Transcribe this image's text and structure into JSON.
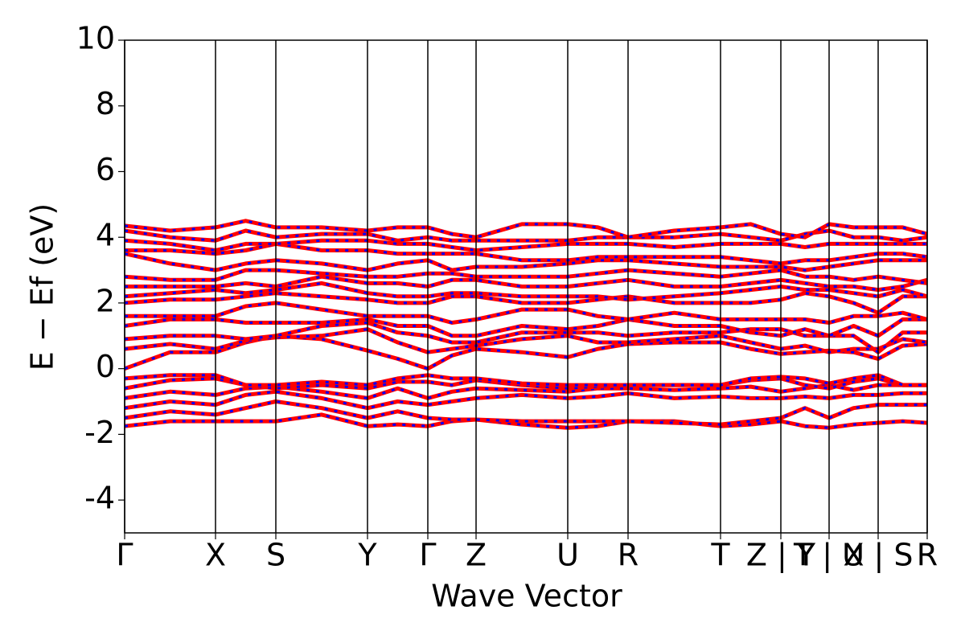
{
  "chart_data": {
    "type": "band",
    "xlabel": "Wave Vector",
    "ylabel": "E − Ef (eV)",
    "xlim": [
      0,
      9.98
    ],
    "ylim": [
      -5,
      10
    ],
    "yticks": [
      -4,
      -2,
      0,
      2,
      4,
      6,
      8,
      10
    ],
    "xticks": [
      {
        "value": 0,
        "label": "Γ"
      },
      {
        "value": 1.13,
        "label": "X"
      },
      {
        "value": 1.88,
        "label": "S"
      },
      {
        "value": 3.02,
        "label": "Y"
      },
      {
        "value": 3.77,
        "label": "Γ"
      },
      {
        "value": 4.37,
        "label": "Z"
      },
      {
        "value": 5.51,
        "label": "U"
      },
      {
        "value": 6.26,
        "label": "R"
      },
      {
        "value": 7.41,
        "label": "T"
      },
      {
        "value": 8.16,
        "label": "Z | Y"
      },
      {
        "value": 8.76,
        "label": "T | U"
      },
      {
        "value": 9.37,
        "label": "X | S"
      },
      {
        "value": 9.98,
        "label": "R"
      }
    ],
    "colors": [
      "#ff0000",
      "#0000ff"
    ],
    "x": [
      0,
      0.565,
      1.13,
      1.505,
      1.88,
      2.45,
      3.02,
      3.395,
      3.77,
      4.07,
      4.37,
      4.94,
      5.51,
      5.885,
      6.26,
      6.835,
      7.41,
      7.785,
      8.16,
      8.46,
      8.76,
      9.065,
      9.37,
      9.675,
      9.98
    ],
    "series": [
      {
        "values": [
          -1.75,
          -1.6,
          -1.6,
          -1.6,
          -1.6,
          -1.4,
          -1.75,
          -1.7,
          -1.75,
          -1.6,
          -1.55,
          -1.7,
          -1.8,
          -1.75,
          -1.6,
          -1.6,
          -1.75,
          -1.7,
          -1.6,
          -1.75,
          -1.8,
          -1.7,
          -1.65,
          -1.6,
          -1.65
        ]
      },
      {
        "values": [
          -1.5,
          -1.3,
          -1.4,
          -1.2,
          -1.0,
          -1.2,
          -1.5,
          -1.3,
          -1.5,
          -1.55,
          -1.55,
          -1.6,
          -1.6,
          -1.6,
          -1.6,
          -1.65,
          -1.7,
          -1.6,
          -1.5,
          -1.2,
          -1.5,
          -1.2,
          -1.1,
          -1.1,
          -1.1
        ]
      },
      {
        "values": [
          -1.2,
          -1.0,
          -1.1,
          -0.8,
          -0.7,
          -0.9,
          -1.2,
          -1.0,
          -1.1,
          -1.0,
          -0.9,
          -0.8,
          -0.9,
          -0.85,
          -0.75,
          -0.9,
          -0.85,
          -0.9,
          -0.9,
          -0.85,
          -0.9,
          -0.8,
          -0.8,
          -0.75,
          -0.75
        ]
      },
      {
        "values": [
          -0.9,
          -0.7,
          -0.8,
          -0.6,
          -0.55,
          -0.7,
          -0.9,
          -0.6,
          -0.9,
          -0.7,
          -0.6,
          -0.65,
          -0.7,
          -0.6,
          -0.6,
          -0.65,
          -0.6,
          -0.55,
          -0.7,
          -0.6,
          -0.5,
          -0.65,
          -0.5,
          -0.5,
          -0.5
        ]
      },
      {
        "values": [
          -0.6,
          -0.35,
          -0.3,
          -0.5,
          -0.6,
          -0.5,
          -0.6,
          -0.4,
          -0.4,
          -0.5,
          -0.35,
          -0.5,
          -0.6,
          -0.55,
          -0.5,
          -0.5,
          -0.5,
          -0.35,
          -0.3,
          -0.5,
          -0.6,
          -0.4,
          -0.3,
          -0.5,
          -0.5
        ]
      },
      {
        "values": [
          -0.3,
          -0.2,
          -0.2,
          -0.5,
          -0.5,
          -0.4,
          -0.5,
          -0.3,
          -0.2,
          -0.3,
          -0.3,
          -0.45,
          -0.5,
          -0.5,
          -0.5,
          -0.5,
          -0.5,
          -0.3,
          -0.25,
          -0.3,
          -0.45,
          -0.3,
          -0.2,
          -0.5,
          -0.5
        ]
      },
      {
        "values": [
          0,
          0.5,
          0.5,
          0.8,
          1.0,
          0.9,
          0.55,
          0.3,
          0,
          0.4,
          0.6,
          0.5,
          0.35,
          0.6,
          0.75,
          0.8,
          0.8,
          0.6,
          0.45,
          0.5,
          0.55,
          0.5,
          0.3,
          0.7,
          0.75
        ]
      },
      {
        "values": [
          0.6,
          0.75,
          0.6,
          0.85,
          0.95,
          1.0,
          1.2,
          0.8,
          0.5,
          0.6,
          0.7,
          0.9,
          1.0,
          0.8,
          0.8,
          0.9,
          1.0,
          0.8,
          0.6,
          0.7,
          0.5,
          0.6,
          0.6,
          0.9,
          0.8
        ]
      },
      {
        "values": [
          0.9,
          1.0,
          1.0,
          0.9,
          1.0,
          1.3,
          1.4,
          1.1,
          1.0,
          0.8,
          0.8,
          1.1,
          1.1,
          1.1,
          1.0,
          1.1,
          1.1,
          1.2,
          1.2,
          1.0,
          1.0,
          1.0,
          0.5,
          1.1,
          1.1
        ]
      },
      {
        "values": [
          1.3,
          1.5,
          1.5,
          1.4,
          1.4,
          1.4,
          1.5,
          1.3,
          1.3,
          1.0,
          1.0,
          1.3,
          1.2,
          1.3,
          1.5,
          1.3,
          1.3,
          1.1,
          1.0,
          1.2,
          1.0,
          1.3,
          1.0,
          1.5,
          1.5
        ]
      },
      {
        "values": [
          1.6,
          1.6,
          1.6,
          1.9,
          2.0,
          1.8,
          1.6,
          1.6,
          1.6,
          1.4,
          1.5,
          1.8,
          1.8,
          1.6,
          1.5,
          1.7,
          1.5,
          1.5,
          1.5,
          1.5,
          1.4,
          1.6,
          1.6,
          1.7,
          1.5
        ]
      },
      {
        "values": [
          2.0,
          2.1,
          2.1,
          2.2,
          2.3,
          2.2,
          2.1,
          2.0,
          2.0,
          2.2,
          2.2,
          2.0,
          2.0,
          2.1,
          2.2,
          2.0,
          2.0,
          2.0,
          2.1,
          2.3,
          2.2,
          2.0,
          1.7,
          2.2,
          2.2
        ]
      },
      {
        "values": [
          2.2,
          2.3,
          2.4,
          2.3,
          2.4,
          2.6,
          2.3,
          2.2,
          2.2,
          2.3,
          2.3,
          2.2,
          2.2,
          2.2,
          2.1,
          2.2,
          2.3,
          2.4,
          2.5,
          2.4,
          2.4,
          2.3,
          2.2,
          2.4,
          2.2
        ]
      },
      {
        "values": [
          2.5,
          2.5,
          2.5,
          2.6,
          2.5,
          2.8,
          2.6,
          2.6,
          2.5,
          2.7,
          2.7,
          2.5,
          2.5,
          2.6,
          2.7,
          2.5,
          2.5,
          2.6,
          2.7,
          2.6,
          2.5,
          2.5,
          2.4,
          2.5,
          2.7
        ]
      },
      {
        "values": [
          2.8,
          2.7,
          2.7,
          3.0,
          3.0,
          2.9,
          2.8,
          2.8,
          2.9,
          2.9,
          2.8,
          2.8,
          2.8,
          2.9,
          3.0,
          2.9,
          2.8,
          2.9,
          3.0,
          2.8,
          2.8,
          2.7,
          2.8,
          2.7,
          2.6
        ]
      },
      {
        "values": [
          3.5,
          3.2,
          3.0,
          3.2,
          3.3,
          3.2,
          3.0,
          3.2,
          3.3,
          3.0,
          3.1,
          3.1,
          3.2,
          3.3,
          3.3,
          3.2,
          3.1,
          3.1,
          3.1,
          3.0,
          3.1,
          3.2,
          3.3,
          3.3,
          3.3
        ]
      },
      {
        "values": [
          3.6,
          3.6,
          3.5,
          3.6,
          3.8,
          3.6,
          3.6,
          3.5,
          3.5,
          3.5,
          3.5,
          3.3,
          3.3,
          3.4,
          3.4,
          3.4,
          3.4,
          3.3,
          3.2,
          3.3,
          3.3,
          3.4,
          3.5,
          3.5,
          3.4
        ]
      },
      {
        "values": [
          3.9,
          3.8,
          3.6,
          3.8,
          3.8,
          3.9,
          3.9,
          3.8,
          3.8,
          3.7,
          3.6,
          3.7,
          3.8,
          3.8,
          3.8,
          3.7,
          3.8,
          3.8,
          3.8,
          3.7,
          3.8,
          3.8,
          3.8,
          3.8,
          3.8
        ]
      },
      {
        "values": [
          4.2,
          4.0,
          3.9,
          4.2,
          4.0,
          4.1,
          4.1,
          3.9,
          4.0,
          3.9,
          3.9,
          3.9,
          3.9,
          4.0,
          4.0,
          4.0,
          4.1,
          4.0,
          3.9,
          4.1,
          4.2,
          4.0,
          4.0,
          3.9,
          4.0
        ]
      },
      {
        "values": [
          4.35,
          4.2,
          4.3,
          4.5,
          4.3,
          4.3,
          4.2,
          4.3,
          4.3,
          4.1,
          4.0,
          4.4,
          4.4,
          4.3,
          4.0,
          4.2,
          4.3,
          4.4,
          4.1,
          4.0,
          4.4,
          4.3,
          4.3,
          4.3,
          4.1
        ]
      }
    ]
  }
}
